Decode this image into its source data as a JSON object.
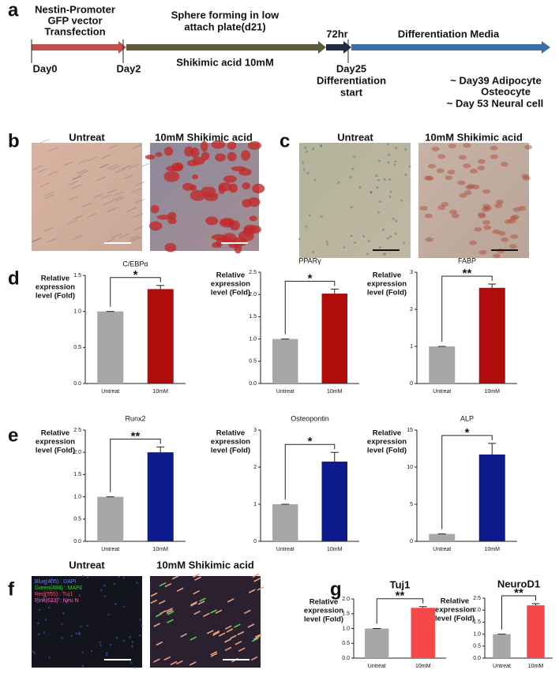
{
  "panels": [
    "a",
    "b",
    "c",
    "d",
    "e",
    "f",
    "g"
  ],
  "timeline": {
    "step1": [
      "Nestin-Promoter",
      "GFP vector",
      "Transfection"
    ],
    "step2": [
      "Sphere forming in low",
      "attach plate(d21)"
    ],
    "step2_note": "Shikimic acid 10mM",
    "step3": "72hr",
    "step4": "Differentiation Media",
    "day0": "Day0",
    "day2": "Day2",
    "day25": [
      "Day25",
      "Differentiation",
      "start"
    ],
    "outcomes": [
      "~ Day39  Adipocyte",
      "Osteocyte",
      "~ Day 53 Neural cell"
    ]
  },
  "images": {
    "untreat": "Untreat",
    "treated": "10mM Shikimic acid",
    "stain_legend": [
      "Blue(405) : DAPI",
      "Green(488) : MAP2",
      "Red(555) : Tuj1",
      "Pink(633) : Neu N"
    ]
  },
  "chart_data": [
    {
      "type": "bar",
      "title": "C/EBPα",
      "y_label": [
        "Relative",
        "expression",
        "level (Fold)"
      ],
      "categories": [
        "Untreat",
        "10mM"
      ],
      "values": [
        1,
        1.31
      ],
      "errors": [
        0,
        0.05
      ],
      "colors": [
        "#a7a7aa",
        "#b10c0c"
      ],
      "significance": "*",
      "ylim": [
        0,
        1.5
      ],
      "yticks": [
        {
          "value": 0,
          "label": "0.0"
        },
        0.5,
        {
          "value": 1,
          "label": "1.0"
        },
        1.5
      ]
    },
    {
      "type": "bar",
      "title": "PPARγ",
      "y_label": [
        "Relative",
        "expression",
        "level (Fold)"
      ],
      "categories": [
        "Untreat",
        "10mM"
      ],
      "values": [
        1,
        2.02
      ],
      "errors": [
        0,
        0.1
      ],
      "colors": [
        "#a7a7aa",
        "#b10c0c"
      ],
      "significance": "*",
      "ylim": [
        0,
        2.5
      ],
      "yticks": [
        {
          "value": 0,
          "label": "0.0"
        },
        0.5,
        {
          "value": 1,
          "label": "1.0"
        },
        1.5,
        {
          "value": 2,
          "label": "2.0"
        },
        2.5
      ]
    },
    {
      "type": "bar",
      "title": "FABP",
      "y_label": [
        "Relative",
        "expression",
        "level (Fold)"
      ],
      "categories": [
        "Untreat",
        "10mM"
      ],
      "values": [
        1,
        2.58
      ],
      "errors": [
        0,
        0.1
      ],
      "colors": [
        "#a7a7aa",
        "#b10c0c"
      ],
      "significance": "**",
      "ylim": [
        0,
        3
      ],
      "yticks": [
        0,
        1,
        2,
        3
      ]
    },
    {
      "type": "bar",
      "title": "Runx2",
      "y_label": [
        "Relative",
        "expression",
        "level (Fold)"
      ],
      "categories": [
        "Untreat",
        "10mM"
      ],
      "values": [
        1,
        2.0
      ],
      "errors": [
        0,
        0.12
      ],
      "colors": [
        "#a7a7aa",
        "#0c1a8c"
      ],
      "significance": "**",
      "ylim": [
        0,
        2.5
      ],
      "yticks": [
        {
          "value": 0,
          "label": "0.0"
        },
        0.5,
        {
          "value": 1,
          "label": "1.0"
        },
        1.5,
        {
          "value": 2,
          "label": "2.0"
        },
        2.5
      ]
    },
    {
      "type": "bar",
      "title": "Osteopontin",
      "y_label": [
        "Relative",
        "expression",
        "level (Fold)"
      ],
      "categories": [
        "Untreat",
        "10mM"
      ],
      "values": [
        1,
        2.15
      ],
      "errors": [
        0,
        0.25
      ],
      "colors": [
        "#a7a7aa",
        "#0c1a8c"
      ],
      "significance": "*",
      "ylim": [
        0,
        3
      ],
      "yticks": [
        0,
        1,
        2,
        3
      ]
    },
    {
      "type": "bar",
      "title": "ALP",
      "y_label": [
        "Relative",
        "expression",
        "level (Fold)"
      ],
      "categories": [
        "Untreat",
        "10mM"
      ],
      "values": [
        1,
        11.7
      ],
      "errors": [
        0,
        1.5
      ],
      "colors": [
        "#a7a7aa",
        "#0c1a8c"
      ],
      "significance": "*",
      "ylim": [
        0,
        15
      ],
      "yticks": [
        0,
        5,
        10,
        15
      ]
    },
    {
      "type": "bar",
      "title": "Tuj1",
      "y_label": [
        "Relative",
        "expression",
        "level (Fold)"
      ],
      "categories": [
        "Untreat",
        "10mM"
      ],
      "values": [
        1,
        1.7
      ],
      "errors": [
        0,
        0.04
      ],
      "colors": [
        "#a7a7aa",
        "#f54848"
      ],
      "significance": "**",
      "ylim": [
        0,
        2
      ],
      "yticks": [
        {
          "value": 0,
          "label": "0.0"
        },
        0.5,
        {
          "value": 1,
          "label": "1.0"
        },
        1.5,
        {
          "value": 2,
          "label": "2.0"
        }
      ]
    },
    {
      "type": "bar",
      "title": "NeuroD1",
      "y_label": [
        "Relative",
        "expression",
        "level (Fold)"
      ],
      "categories": [
        "Untreat",
        "10mM"
      ],
      "values": [
        1,
        2.2
      ],
      "errors": [
        0,
        0.07
      ],
      "colors": [
        "#a7a7aa",
        "#f54848"
      ],
      "significance": "**",
      "ylim": [
        0,
        2.5
      ],
      "yticks": [
        {
          "value": 0,
          "label": "0.0"
        },
        0.5,
        {
          "value": 1,
          "label": "1.0"
        },
        1.5,
        {
          "value": 2,
          "label": "2.0"
        },
        2.5
      ]
    }
  ]
}
